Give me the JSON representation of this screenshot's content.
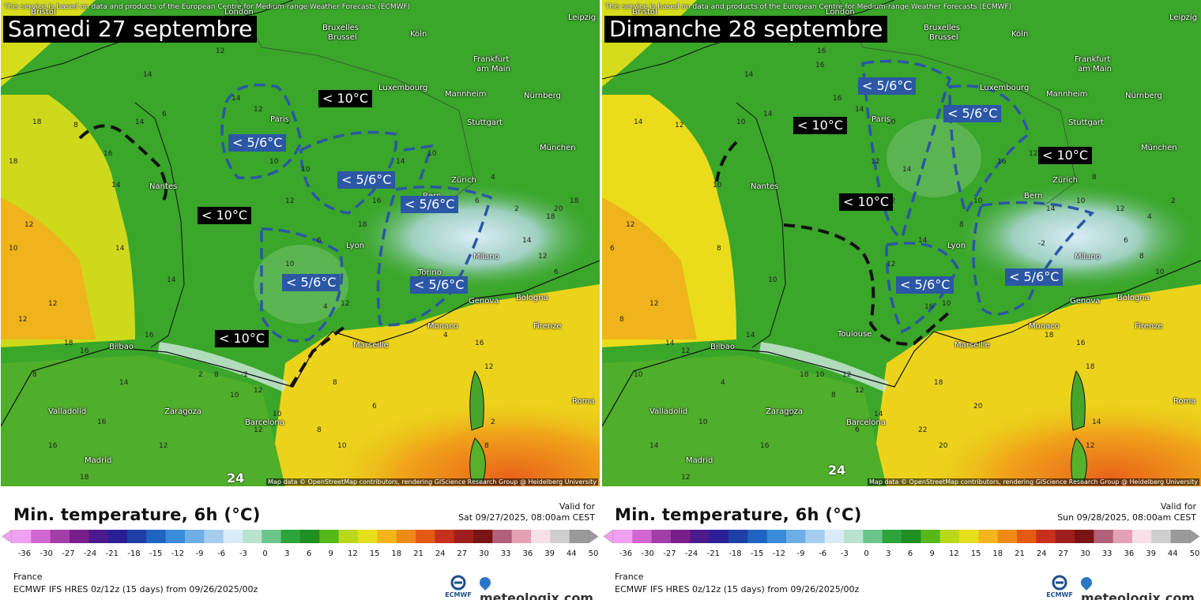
{
  "credit": "This service is based on data and products of the European Centre for Medium-range Weather Forecasts (ECMWF)",
  "map_credit": "Map data © OpenStreetMap contributors, rendering GIScience Research Group @ Heidelberg University",
  "footer_title": "Min. temperature, 6h (°C)",
  "valid_for": "Valid for",
  "region": "France",
  "model": "ECMWF IFS HRES 0z/12z (15 days) from 09/26/2025/00z",
  "brand": "meteologix.com",
  "ecmwf_label": "ECMWF",
  "scale_ticks": [
    "-36",
    "-30",
    "-27",
    "-24",
    "-21",
    "-18",
    "-15",
    "-12",
    "-9",
    "-6",
    "-3",
    "0",
    "3",
    "6",
    "9",
    "12",
    "15",
    "18",
    "21",
    "24",
    "27",
    "30",
    "33",
    "36",
    "39",
    "44",
    "50"
  ],
  "scale_colors": [
    "#f0a0f0",
    "#d266d2",
    "#a13ea8",
    "#7a1f8a",
    "#4b1a8c",
    "#2b1f95",
    "#1e3fa6",
    "#1f64c0",
    "#3a8bd8",
    "#6eaee6",
    "#a6cdf0",
    "#d9ebf7",
    "#b9e3cf",
    "#6bc48a",
    "#2ea33a",
    "#1f8f22",
    "#57b81a",
    "#b9d81a",
    "#e6e01c",
    "#f3b51a",
    "#ef8a17",
    "#e45a14",
    "#c7301a",
    "#9e1e1e",
    "#7a1414",
    "#b0607a",
    "#e4a0b4",
    "#f6dfe6",
    "#cfcfcf",
    "#9a9a9a"
  ],
  "colors": {
    "annotation_blue": "#2b57a5",
    "annotation_black": "#000000"
  },
  "panels": [
    {
      "title": "Samedi 27 septembre",
      "valid_date": "Sat 09/27/2025, 08:00am CEST",
      "annotations": [
        {
          "text": "< 10°C",
          "style": "cold"
        },
        {
          "text": "< 5/6°C",
          "style": "blue"
        },
        {
          "text": "< 5/6°C",
          "style": "blue"
        },
        {
          "text": "< 5/6°C",
          "style": "blue"
        },
        {
          "text": "< 10°C",
          "style": "cold"
        },
        {
          "text": "< 5/6°C",
          "style": "blue"
        },
        {
          "text": "< 5/6°C",
          "style": "blue"
        },
        {
          "text": "< 10°C",
          "style": "cold"
        }
      ],
      "cities": [
        "Bristol",
        "London",
        "Bruxelles",
        "Brussel",
        "Köln",
        "Leipzig",
        "Frankfurt",
        "am Main",
        "Luxembourg",
        "Mannheim",
        "Nürnberg",
        "Paris",
        "Stuttgart",
        "München",
        "Nantes",
        "Bern",
        "Zürich",
        "Lyon",
        "Milano",
        "Torino",
        "Genova",
        "Bologna",
        "Monaco",
        "Marseille",
        "Firenze",
        "Bilbao",
        "Valladolid",
        "Zaragoza",
        "Barcelona",
        "Madrid",
        "Roma"
      ],
      "temps": [
        "14",
        "12",
        "18",
        "8",
        "14",
        "6",
        "14",
        "12",
        "10",
        "8",
        "14",
        "14",
        "12",
        "16",
        "16",
        "18",
        "16",
        "12",
        "8",
        "10",
        "6",
        "8",
        "4",
        "2",
        "8",
        "6",
        "12",
        "14",
        "18",
        "18",
        "20",
        "20",
        "18",
        "16",
        "12",
        "10",
        "14",
        "10",
        "8",
        "6",
        "4",
        "2",
        "12",
        "10",
        "6",
        "4",
        "2",
        "-2",
        "8",
        "10",
        "12",
        "14",
        "16",
        "18",
        "16",
        "12",
        "8",
        "12",
        "10",
        "8",
        "12",
        "10",
        "12",
        "14",
        "16",
        "18"
      ],
      "big_number": "24"
    },
    {
      "title": "Dimanche 28 septembre",
      "valid_date": "Sun 09/28/2025, 08:00am CEST",
      "annotations": [
        {
          "text": "< 5/6°C",
          "style": "blue"
        },
        {
          "text": "< 10°C",
          "style": "cold"
        },
        {
          "text": "< 5/6°C",
          "style": "blue"
        },
        {
          "text": "< 10°C",
          "style": "cold"
        },
        {
          "text": "< 10°C",
          "style": "cold"
        },
        {
          "text": "< 5/6°C",
          "style": "blue"
        },
        {
          "text": "< 5/6°C",
          "style": "blue"
        }
      ],
      "cities": [
        "Bristol",
        "London",
        "Bruxelles",
        "Brussel",
        "Köln",
        "Leipzig",
        "Frankfurt",
        "am Main",
        "Luxembourg",
        "Mannheim",
        "Nürnberg",
        "Paris",
        "Stuttgart",
        "München",
        "Nantes",
        "Bern",
        "Zürich",
        "Lyon",
        "Milano",
        "Genova",
        "Bologna",
        "Monaco",
        "Marseille",
        "Firenze",
        "Toulouse",
        "Bilbao",
        "Valladolid",
        "Zaragoza",
        "Barcelona",
        "Madrid",
        "Roma"
      ],
      "temps": [
        "14",
        "16",
        "14",
        "12",
        "10",
        "14",
        "16",
        "16",
        "14",
        "12",
        "10",
        "8",
        "10",
        "12",
        "12",
        "14",
        "14",
        "16",
        "18",
        "18",
        "20",
        "20",
        "22",
        "18",
        "14",
        "12",
        "10",
        "8",
        "6",
        "4",
        "2",
        "-2",
        "8",
        "10",
        "12",
        "14",
        "16",
        "12",
        "14",
        "10",
        "8",
        "12",
        "10",
        "12",
        "14",
        "16",
        "18",
        "12",
        "10",
        "8",
        "6",
        "4",
        "10",
        "12",
        "14",
        "16",
        "18",
        "12",
        "14",
        "10",
        "8",
        "6",
        "12",
        "10"
      ],
      "big_number": "24"
    }
  ]
}
